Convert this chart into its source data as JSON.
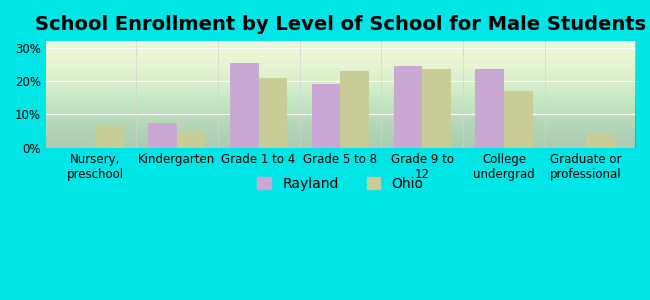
{
  "title": "School Enrollment by Level of School for Male Students",
  "categories": [
    "Nursery,\npreschool",
    "Kindergarten",
    "Grade 1 to 4",
    "Grade 5 to 8",
    "Grade 9 to\n12",
    "College\nundergrad",
    "Graduate or\nprofessional"
  ],
  "rayland": [
    0,
    7.5,
    25.5,
    19.0,
    24.5,
    23.5,
    0
  ],
  "ohio": [
    6.5,
    5.0,
    21.0,
    23.0,
    23.5,
    17.0,
    4.0
  ],
  "rayland_color": "#c9a8d4",
  "ohio_color": "#c8cc96",
  "background_chart": "#e8f5e0",
  "background_outer": "#00e5e5",
  "ylabel_ticks": [
    "0%",
    "10%",
    "20%",
    "30%"
  ],
  "ytick_vals": [
    0,
    10,
    20,
    30
  ],
  "ylim": [
    0,
    32
  ],
  "legend_labels": [
    "Rayland",
    "Ohio"
  ],
  "title_fontsize": 14,
  "tick_fontsize": 8.5,
  "legend_fontsize": 10
}
